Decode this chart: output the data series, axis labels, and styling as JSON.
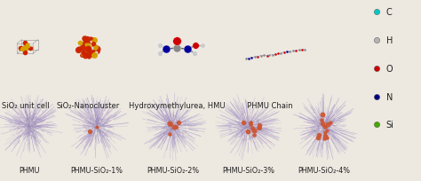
{
  "background_color": "#ede8e0",
  "top_labels": [
    "SiO₂ unit cell",
    "SiO₂-Nanocluster",
    "Hydroxymethylurea, HMU",
    "PHMU Chain"
  ],
  "bottom_labels": [
    "PHMU",
    "PHMU-SiO₂-1%",
    "PHMU-SiO₂-2%",
    "PHMU-SiO₂-3%",
    "PHMU-SiO₂-4%"
  ],
  "legend_labels": [
    "C",
    "H",
    "O",
    "N",
    "Si"
  ],
  "legend_colors": [
    "#00c8c8",
    "#b4b4b4",
    "#cc0000",
    "#000080",
    "#44aa00"
  ],
  "label_fontsize": 6.0,
  "legend_fontsize": 7.0,
  "fig_width": 4.74,
  "fig_height": 2.05
}
